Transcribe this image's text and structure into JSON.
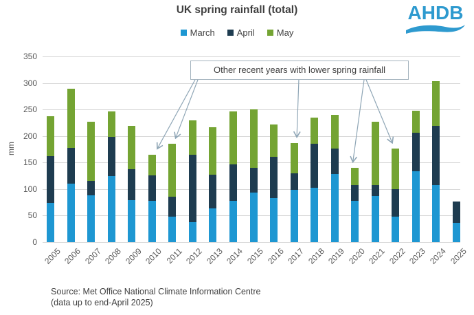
{
  "title": "UK spring rainfall (total)",
  "logo": {
    "text": "AHDB",
    "color": "#2e9acf"
  },
  "legend": [
    {
      "label": "March",
      "color": "#1e97d2"
    },
    {
      "label": "April",
      "color": "#1e3c50"
    },
    {
      "label": "May",
      "color": "#74a433"
    }
  ],
  "annotation": {
    "text": "Other recent years with lower spring rainfall",
    "target_years": [
      "2010",
      "2011",
      "2017",
      "2020",
      "2022"
    ]
  },
  "y_axis": {
    "label": "mm",
    "ticks": [
      0,
      50,
      100,
      150,
      200,
      250,
      300,
      350
    ],
    "max": 350
  },
  "source": {
    "line1": "Source: Met Office National Climate Information Centre",
    "line2": "(data up to end-April 2025)"
  },
  "colors": {
    "march": "#1e97d2",
    "april": "#1e3c50",
    "may": "#74a433",
    "gridline": "#d9d9d9",
    "axis_text": "#595959",
    "text": "#404040",
    "annotation_line": "#8fa6b6"
  },
  "chart_data": {
    "type": "bar",
    "stacked": true,
    "title": "UK spring rainfall (total)",
    "xlabel": "",
    "ylabel": "mm",
    "ylim": [
      0,
      350
    ],
    "grid": "horizontal",
    "legend_position": "top-center",
    "categories": [
      "2005",
      "2006",
      "2007",
      "2008",
      "2009",
      "2010",
      "2011",
      "2012",
      "2013",
      "2014",
      "2015",
      "2016",
      "2017",
      "2018",
      "2019",
      "2020",
      "2021",
      "2022",
      "2023",
      "2024",
      "2025"
    ],
    "series": [
      {
        "name": "March",
        "color": "#1e97d2",
        "values": [
          74,
          110,
          88,
          124,
          79,
          78,
          48,
          37,
          64,
          78,
          94,
          83,
          98,
          103,
          129,
          78,
          87,
          48,
          133,
          107,
          36
        ]
      },
      {
        "name": "April",
        "color": "#1e3c50",
        "values": [
          88,
          67,
          27,
          74,
          58,
          48,
          37,
          128,
          63,
          68,
          46,
          78,
          32,
          83,
          47,
          30,
          20,
          52,
          73,
          112,
          41
        ]
      },
      {
        "name": "May",
        "color": "#74a433",
        "values": [
          75,
          112,
          112,
          48,
          82,
          39,
          100,
          65,
          90,
          100,
          110,
          61,
          57,
          49,
          64,
          32,
          120,
          76,
          41,
          84,
          0
        ]
      }
    ],
    "totals": [
      237,
      289,
      227,
      246,
      219,
      165,
      185,
      230,
      217,
      246,
      250,
      222,
      187,
      235,
      240,
      140,
      227,
      176,
      247,
      303,
      77
    ],
    "annotation": "Other recent years with lower spring rainfall",
    "annotated_categories": [
      "2010",
      "2011",
      "2017",
      "2020",
      "2022"
    ]
  }
}
